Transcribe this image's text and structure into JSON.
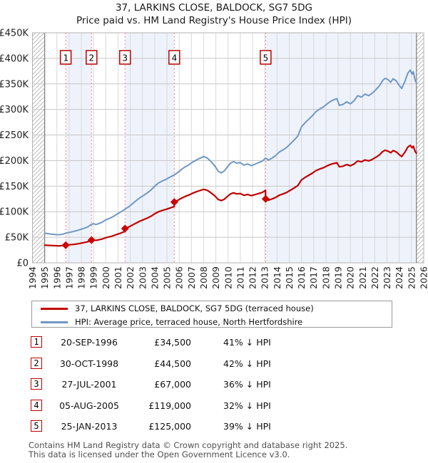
{
  "title": "37, LARKINS CLOSE, BALDOCK, SG7 5DG",
  "subtitle": "Price paid vs. HM Land Registry's House Price Index (HPI)",
  "legend": [
    {
      "label": "37, LARKINS CLOSE, BALDOCK, SG7 5DG (terraced house)",
      "color": "#c00000"
    },
    {
      "label": "HPI: Average price, terraced house, North Hertfordshire",
      "color": "#6f98c5"
    }
  ],
  "transactions": [
    {
      "num": "1",
      "date": "20-SEP-1996",
      "price": "£34,500",
      "hpi": "41% ↓ HPI",
      "year": 1996.72,
      "value": 34500
    },
    {
      "num": "2",
      "date": "30-OCT-1998",
      "price": "£44,500",
      "hpi": "42% ↓ HPI",
      "year": 1998.83,
      "value": 44500
    },
    {
      "num": "3",
      "date": "27-JUL-2001",
      "price": "£67,000",
      "hpi": "36% ↓ HPI",
      "year": 2001.57,
      "value": 67000
    },
    {
      "num": "4",
      "date": "05-AUG-2005",
      "price": "£119,000",
      "hpi": "32% ↓ HPI",
      "year": 2005.6,
      "value": 119000
    },
    {
      "num": "5",
      "date": "25-JAN-2013",
      "price": "£125,000",
      "hpi": "39% ↓ HPI",
      "year": 2013.07,
      "value": 125000
    }
  ],
  "footer": {
    "line1": "Contains HM Land Registry data © Crown copyright and database right 2025.",
    "line2": "This data is licensed under the Open Government Licence v3.0."
  },
  "chart_data": {
    "type": "line",
    "x_range": [
      1994,
      2026
    ],
    "y_range": [
      0,
      450000
    ],
    "data_start": 1995.0,
    "data_end": 2025.4,
    "grid": true,
    "band_color": "#eef2fb",
    "grid_color_h": "#c8c8c8",
    "grid_color_v": "#d9d9d9",
    "dashed_line_color": "#ff7d7d",
    "marker_color": "#cc0000",
    "shaded_bands": [
      [
        1996.72,
        1998.83
      ],
      [
        2001.57,
        2005.6
      ],
      [
        2013.07,
        2025.4
      ]
    ],
    "y_ticks": [
      [
        0,
        "£0"
      ],
      [
        50000,
        "£50K"
      ],
      [
        100000,
        "£100K"
      ],
      [
        150000,
        "£150K"
      ],
      [
        200000,
        "£200K"
      ],
      [
        250000,
        "£250K"
      ],
      [
        300000,
        "£300K"
      ],
      [
        350000,
        "£350K"
      ],
      [
        400000,
        "£400K"
      ],
      [
        450000,
        "£450K"
      ]
    ],
    "x_ticks": [
      1994,
      1995,
      1996,
      1997,
      1998,
      1999,
      2000,
      2001,
      2002,
      2003,
      2004,
      2005,
      2006,
      2007,
      2008,
      2009,
      2010,
      2011,
      2012,
      2013,
      2014,
      2015,
      2016,
      2017,
      2018,
      2019,
      2020,
      2021,
      2022,
      2023,
      2024,
      2025,
      2026
    ],
    "series": [
      {
        "name": "HPI: Average price, terraced house, North Hertfordshire",
        "color": "#6f98c5",
        "width": 2,
        "points": [
          [
            1995.0,
            58000
          ],
          [
            1995.3,
            57000
          ],
          [
            1995.6,
            56000
          ],
          [
            1995.9,
            55200
          ],
          [
            1996.2,
            55000
          ],
          [
            1996.5,
            56200
          ],
          [
            1996.72,
            58000
          ],
          [
            1997.0,
            59500
          ],
          [
            1997.3,
            61000
          ],
          [
            1997.6,
            62800
          ],
          [
            1997.9,
            65000
          ],
          [
            1998.2,
            67500
          ],
          [
            1998.5,
            70000
          ],
          [
            1998.83,
            75500
          ],
          [
            1999.0,
            76500
          ],
          [
            1999.2,
            75000
          ],
          [
            1999.45,
            77000
          ],
          [
            1999.7,
            79500
          ],
          [
            2000.0,
            84000
          ],
          [
            2000.3,
            87000
          ],
          [
            2000.6,
            90500
          ],
          [
            2000.9,
            95000
          ],
          [
            2001.2,
            99000
          ],
          [
            2001.57,
            105000
          ],
          [
            2001.9,
            110000
          ],
          [
            2002.2,
            116000
          ],
          [
            2002.5,
            122000
          ],
          [
            2002.8,
            127500
          ],
          [
            2003.1,
            132000
          ],
          [
            2003.4,
            137000
          ],
          [
            2003.7,
            142500
          ],
          [
            2004.0,
            150000
          ],
          [
            2004.3,
            156000
          ],
          [
            2004.6,
            160000
          ],
          [
            2004.9,
            163000
          ],
          [
            2005.2,
            167000
          ],
          [
            2005.6,
            172000
          ],
          [
            2005.9,
            177000
          ],
          [
            2006.2,
            183000
          ],
          [
            2006.5,
            188000
          ],
          [
            2006.8,
            192000
          ],
          [
            2007.1,
            197000
          ],
          [
            2007.4,
            201000
          ],
          [
            2007.7,
            204500
          ],
          [
            2008.0,
            208000
          ],
          [
            2008.3,
            205000
          ],
          [
            2008.6,
            198000
          ],
          [
            2008.9,
            190000
          ],
          [
            2009.2,
            179000
          ],
          [
            2009.45,
            176000
          ],
          [
            2009.7,
            180000
          ],
          [
            2009.95,
            188000
          ],
          [
            2010.2,
            195000
          ],
          [
            2010.45,
            198000
          ],
          [
            2010.7,
            195000
          ],
          [
            2011.0,
            196000
          ],
          [
            2011.3,
            191000
          ],
          [
            2011.6,
            193500
          ],
          [
            2011.9,
            190000
          ],
          [
            2012.2,
            193000
          ],
          [
            2012.5,
            196000
          ],
          [
            2012.8,
            199000
          ],
          [
            2013.07,
            205000
          ],
          [
            2013.3,
            201000
          ],
          [
            2013.6,
            205000
          ],
          [
            2013.9,
            210000
          ],
          [
            2014.2,
            217000
          ],
          [
            2014.5,
            221000
          ],
          [
            2014.8,
            226000
          ],
          [
            2015.1,
            233000
          ],
          [
            2015.4,
            240000
          ],
          [
            2015.7,
            248000
          ],
          [
            2016.0,
            266000
          ],
          [
            2016.3,
            274000
          ],
          [
            2016.6,
            281000
          ],
          [
            2016.9,
            288000
          ],
          [
            2017.2,
            296000
          ],
          [
            2017.5,
            301000
          ],
          [
            2017.8,
            305000
          ],
          [
            2018.1,
            311000
          ],
          [
            2018.4,
            316000
          ],
          [
            2018.65,
            319000
          ],
          [
            2018.9,
            321000
          ],
          [
            2019.1,
            308000
          ],
          [
            2019.4,
            310000
          ],
          [
            2019.7,
            315000
          ],
          [
            2020.0,
            311000
          ],
          [
            2020.3,
            317000
          ],
          [
            2020.6,
            327000
          ],
          [
            2020.9,
            324000
          ],
          [
            2021.2,
            330000
          ],
          [
            2021.5,
            327000
          ],
          [
            2021.8,
            332000
          ],
          [
            2022.1,
            339000
          ],
          [
            2022.4,
            347000
          ],
          [
            2022.65,
            357000
          ],
          [
            2022.85,
            361000
          ],
          [
            2023.1,
            358000
          ],
          [
            2023.3,
            353000
          ],
          [
            2023.5,
            360000
          ],
          [
            2023.75,
            356000
          ],
          [
            2024.0,
            347000
          ],
          [
            2024.2,
            341000
          ],
          [
            2024.45,
            354000
          ],
          [
            2024.7,
            371000
          ],
          [
            2024.9,
            377000
          ],
          [
            2025.05,
            369000
          ],
          [
            2025.15,
            374000
          ],
          [
            2025.3,
            357000
          ],
          [
            2025.4,
            352000
          ]
        ]
      },
      {
        "name": "37, LARKINS CLOSE, BALDOCK, SG7 5DG (terraced house)",
        "color": "#c00000",
        "width": 2.2,
        "points": [
          [
            1995.0,
            34500
          ],
          [
            1995.3,
            34200
          ],
          [
            1995.6,
            33800
          ],
          [
            1995.9,
            33400
          ],
          [
            1996.2,
            33200
          ],
          [
            1996.5,
            33900
          ],
          [
            1996.72,
            34500
          ],
          [
            1997.0,
            35200
          ],
          [
            1997.3,
            36000
          ],
          [
            1997.6,
            36800
          ],
          [
            1997.9,
            38000
          ],
          [
            1998.2,
            39500
          ],
          [
            1998.5,
            41000
          ],
          [
            1998.83,
            44500
          ],
          [
            1999.0,
            44800
          ],
          [
            1999.2,
            44000
          ],
          [
            1999.45,
            45200
          ],
          [
            1999.7,
            46600
          ],
          [
            2000.0,
            49200
          ],
          [
            2000.3,
            51000
          ],
          [
            2000.6,
            53000
          ],
          [
            2000.9,
            55600
          ],
          [
            2001.2,
            58000
          ],
          [
            2001.56,
            61500
          ],
          [
            2001.57,
            67000
          ],
          [
            2001.9,
            70500
          ],
          [
            2002.2,
            74300
          ],
          [
            2002.5,
            78000
          ],
          [
            2002.8,
            81600
          ],
          [
            2003.1,
            84500
          ],
          [
            2003.4,
            87700
          ],
          [
            2003.7,
            91200
          ],
          [
            2004.0,
            96000
          ],
          [
            2004.3,
            99800
          ],
          [
            2004.6,
            102400
          ],
          [
            2004.9,
            104300
          ],
          [
            2005.2,
            106900
          ],
          [
            2005.59,
            110000
          ],
          [
            2005.6,
            119000
          ],
          [
            2005.9,
            122400
          ],
          [
            2006.2,
            126600
          ],
          [
            2006.5,
            130000
          ],
          [
            2006.8,
            132800
          ],
          [
            2007.1,
            136200
          ],
          [
            2007.4,
            139000
          ],
          [
            2007.7,
            141400
          ],
          [
            2008.0,
            143800
          ],
          [
            2008.3,
            141800
          ],
          [
            2008.6,
            136900
          ],
          [
            2008.9,
            131400
          ],
          [
            2009.2,
            123800
          ],
          [
            2009.45,
            121700
          ],
          [
            2009.7,
            124500
          ],
          [
            2009.95,
            130000
          ],
          [
            2010.2,
            134900
          ],
          [
            2010.45,
            136900
          ],
          [
            2010.7,
            134900
          ],
          [
            2011.0,
            135500
          ],
          [
            2011.3,
            132100
          ],
          [
            2011.6,
            133800
          ],
          [
            2011.9,
            131400
          ],
          [
            2012.2,
            133500
          ],
          [
            2012.5,
            135500
          ],
          [
            2012.8,
            137600
          ],
          [
            2013.06,
            141800
          ],
          [
            2013.07,
            125000
          ],
          [
            2013.3,
            122600
          ],
          [
            2013.6,
            125000
          ],
          [
            2013.9,
            128000
          ],
          [
            2014.2,
            132300
          ],
          [
            2014.5,
            134800
          ],
          [
            2014.8,
            137800
          ],
          [
            2015.1,
            142100
          ],
          [
            2015.4,
            146400
          ],
          [
            2015.7,
            151200
          ],
          [
            2016.0,
            162200
          ],
          [
            2016.3,
            167100
          ],
          [
            2016.6,
            171400
          ],
          [
            2016.9,
            175600
          ],
          [
            2017.2,
            180500
          ],
          [
            2017.5,
            183600
          ],
          [
            2017.8,
            186000
          ],
          [
            2018.1,
            189700
          ],
          [
            2018.4,
            192700
          ],
          [
            2018.65,
            194500
          ],
          [
            2018.9,
            195800
          ],
          [
            2019.1,
            187800
          ],
          [
            2019.4,
            189100
          ],
          [
            2019.7,
            192100
          ],
          [
            2020.0,
            189700
          ],
          [
            2020.3,
            193300
          ],
          [
            2020.6,
            199400
          ],
          [
            2020.9,
            197600
          ],
          [
            2021.2,
            201300
          ],
          [
            2021.5,
            199400
          ],
          [
            2021.8,
            202500
          ],
          [
            2022.1,
            206700
          ],
          [
            2022.4,
            211600
          ],
          [
            2022.65,
            217700
          ],
          [
            2022.85,
            220200
          ],
          [
            2023.1,
            218300
          ],
          [
            2023.3,
            215300
          ],
          [
            2023.5,
            219600
          ],
          [
            2023.75,
            217100
          ],
          [
            2024.0,
            211600
          ],
          [
            2024.2,
            208000
          ],
          [
            2024.45,
            215900
          ],
          [
            2024.7,
            226300
          ],
          [
            2024.9,
            229900
          ],
          [
            2025.05,
            225000
          ],
          [
            2025.15,
            228100
          ],
          [
            2025.3,
            217700
          ],
          [
            2025.4,
            214700
          ]
        ]
      }
    ]
  }
}
